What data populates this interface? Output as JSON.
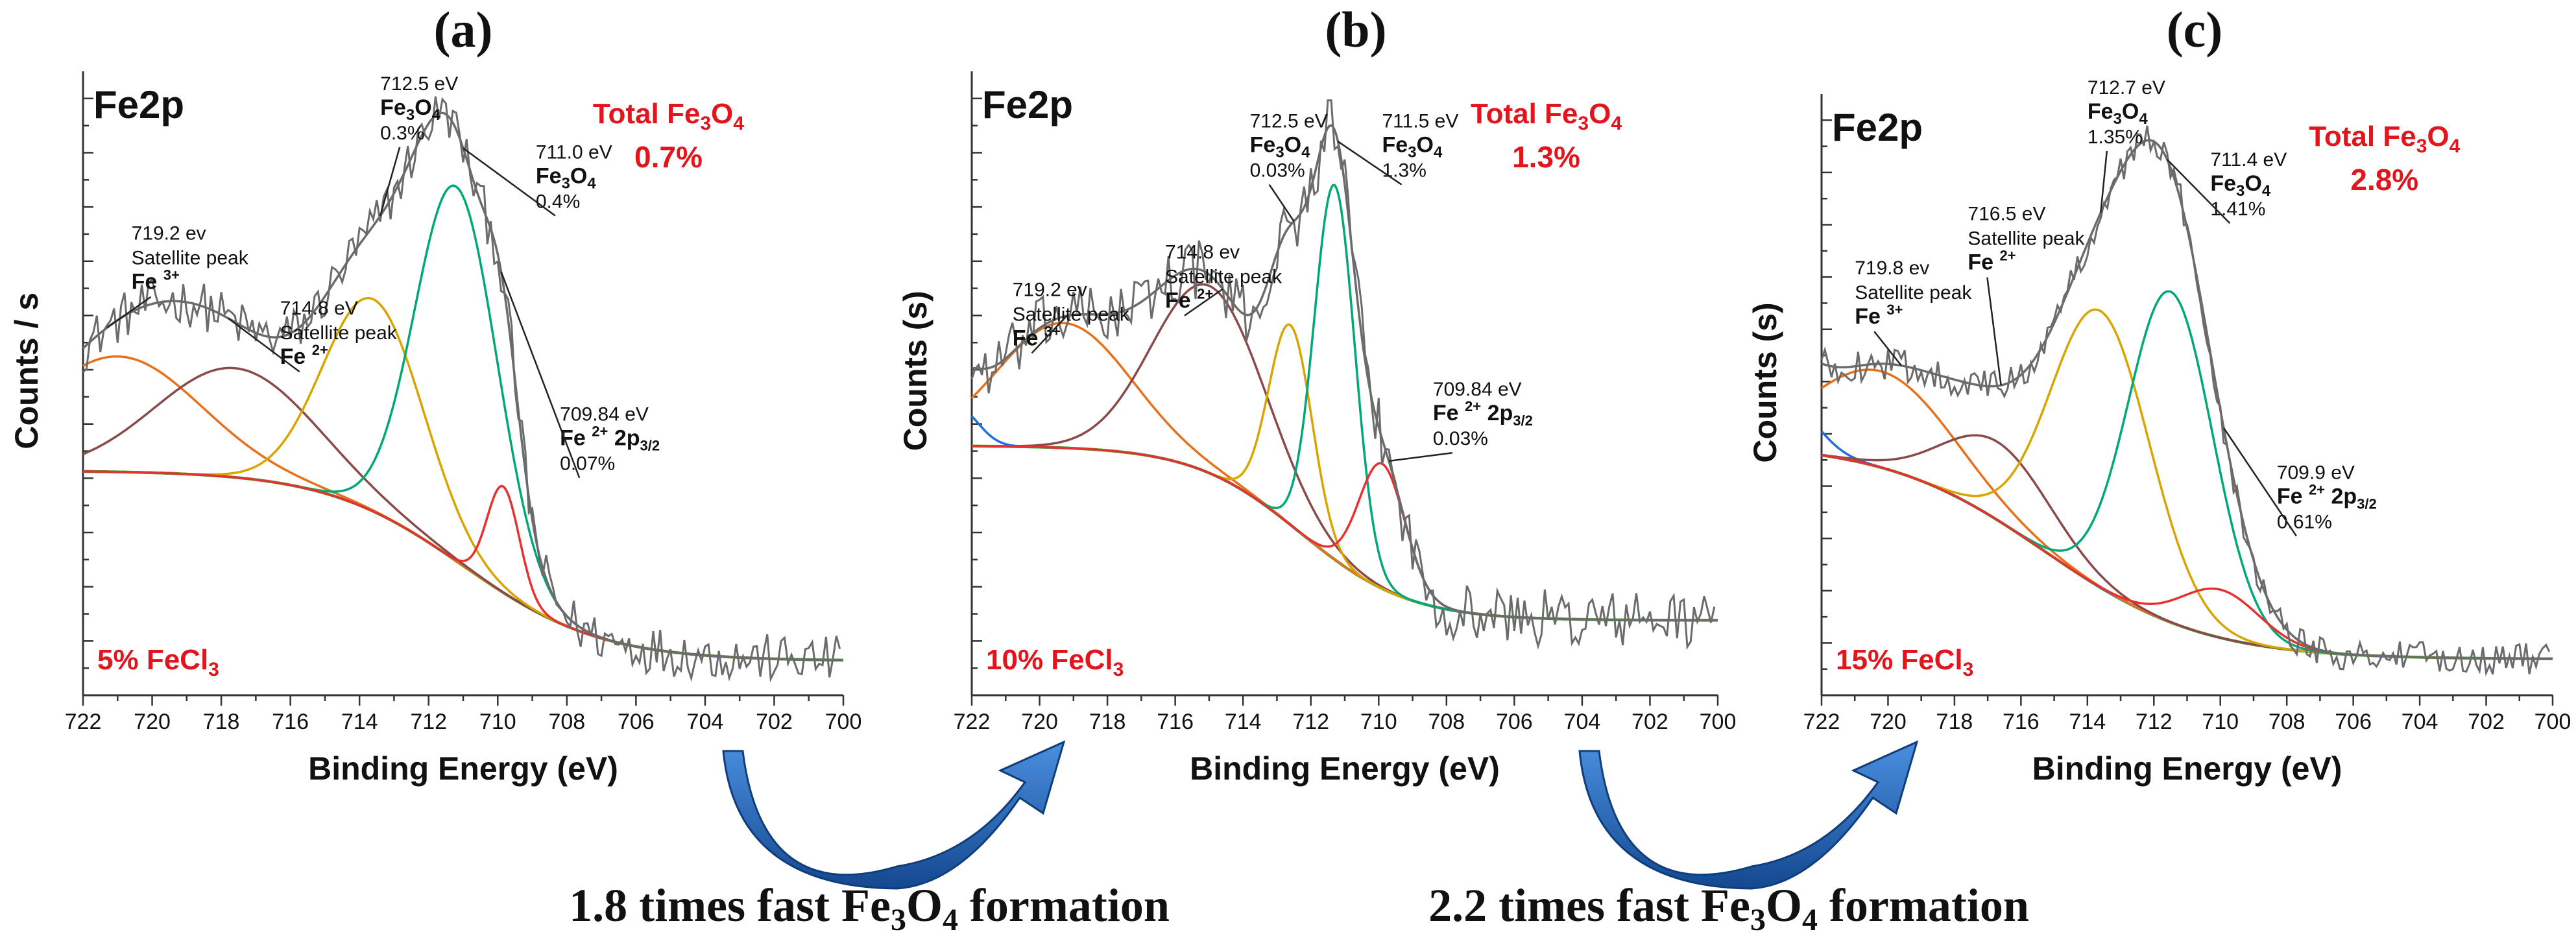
{
  "colors": {
    "raw": "#6b6b6b",
    "envelope": "#6b6b6b",
    "background": "#2db82d",
    "fe3_sat": "#e8701a",
    "fe2_sat": "#8b4a4a",
    "fe3o4_a": "#d9a400",
    "fe3o4_b": "#00a878",
    "fe2": "#e83030",
    "extra_blue": "#1f6fe0",
    "red_text": "#e3141b",
    "arrow": "#1f5fb0"
  },
  "comparisons": [
    {
      "lead": "1.8 times fast Fe",
      "sub3": "3",
      "mid": "O",
      "sub4": "4",
      "tail": " formation"
    },
    {
      "lead": "2.2 times fast Fe",
      "sub3": "3",
      "mid": "O",
      "sub4": "4",
      "tail": " formation"
    }
  ],
  "chart_data": [
    {
      "type": "line",
      "panel": "(a)",
      "element_label": "Fe2p",
      "xlabel": "Binding Energy (eV)",
      "ylabel": "Counts / s",
      "x_ticks": [
        "722",
        "720",
        "718",
        "716",
        "714",
        "712",
        "710",
        "708",
        "706",
        "704",
        "702",
        "700"
      ],
      "xlim": [
        722,
        700
      ],
      "sample": {
        "text": "5% FeCl",
        "sub": "3"
      },
      "total": {
        "title": "Total Fe",
        "title_sub": "3",
        "title_mid": "O",
        "title_sub2": "4",
        "value": "0.7%"
      },
      "baseline": {
        "left": 0.36,
        "right": 0.055,
        "mid": 711.0,
        "w": 2.0
      },
      "noise_amp": 0.018,
      "raw_xmax": 700.0,
      "components": [
        {
          "name": "fe3_sat",
          "center": 721.0,
          "height": 0.185,
          "fwhm": 5.6
        },
        {
          "name": "fe2_sat",
          "center": 717.6,
          "height": 0.175,
          "fwhm": 5.4
        },
        {
          "name": "fe3o4_a",
          "center": 713.6,
          "height": 0.34,
          "fwhm": 3.4
        },
        {
          "name": "fe3o4_b",
          "center": 711.2,
          "height": 0.6,
          "fwhm": 2.8
        },
        {
          "name": "fe2",
          "center": 709.84,
          "height": 0.17,
          "fwhm": 1.1
        }
      ],
      "annotations": [
        {
          "lines": [
            "719.2 ev",
            "Satellite peak",
            "Fe 3+"
          ],
          "bold_last": true,
          "label_x": 720.6,
          "label_y": 0.73,
          "target_x": 721.3
        },
        {
          "lines": [
            "714.8 eV",
            "Satellite peak",
            "Fe 2+"
          ],
          "bold_last": true,
          "label_x": 716.3,
          "label_y": 0.61,
          "target_x": 717.8
        },
        {
          "lines": [
            "712.5 eV",
            "Fe3O4",
            "0.3%"
          ],
          "bold_mid": true,
          "label_x": 713.4,
          "label_y": 0.97,
          "target_x": 713.4
        },
        {
          "lines": [
            "711.0 eV",
            "Fe3O4",
            "0.4%"
          ],
          "bold_mid": true,
          "label_x": 708.9,
          "label_y": 0.86,
          "target_x": 711.0
        },
        {
          "lines": [
            "709.84 eV",
            "Fe 2+ 2p3/2",
            "0.07%"
          ],
          "bold_mid": true,
          "label_x": 708.2,
          "label_y": 0.44,
          "target_x": 709.9
        }
      ]
    },
    {
      "type": "line",
      "panel": "(b)",
      "element_label": "Fe2p",
      "xlabel": "Binding Energy (eV)",
      "ylabel": "Counts (s)",
      "x_ticks": [
        "722",
        "720",
        "718",
        "716",
        "714",
        "712",
        "710",
        "708",
        "706",
        "704",
        "702",
        "700"
      ],
      "xlim": [
        722,
        700
      ],
      "sample": {
        "text": "10% FeCl",
        "sub": "3"
      },
      "total": {
        "title": "Total Fe",
        "title_sub": "3",
        "title_mid": "O",
        "title_sub2": "4",
        "value": "1.3%"
      },
      "baseline": {
        "left": 0.4,
        "right": 0.12,
        "mid": 712.3,
        "w": 1.6
      },
      "noise_amp": 0.022,
      "raw_xmax": 700.0,
      "components": [
        {
          "name": "extra_blue",
          "center": 722.4,
          "height": 0.06,
          "fwhm": 1.4
        },
        {
          "name": "fe3_sat",
          "center": 719.3,
          "height": 0.2,
          "fwhm": 4.6
        },
        {
          "name": "fe2_sat",
          "center": 715.0,
          "height": 0.3,
          "fwhm": 3.9
        },
        {
          "name": "fe3o4_a",
          "center": 712.6,
          "height": 0.32,
          "fwhm": 1.5
        },
        {
          "name": "fe3o4_b",
          "center": 711.3,
          "height": 0.6,
          "fwhm": 1.4
        },
        {
          "name": "fe2",
          "center": 709.9,
          "height": 0.2,
          "fwhm": 1.6
        }
      ],
      "annotations": [
        {
          "lines": [
            "719.2 ev",
            "Satellite peak",
            "Fe 3+"
          ],
          "bold_last": true,
          "label_x": 720.8,
          "label_y": 0.64,
          "target_x": 719.2
        },
        {
          "lines": [
            "714.8 ev",
            "Satellite peak",
            "Fe 2+"
          ],
          "bold_last": true,
          "label_x": 716.3,
          "label_y": 0.7,
          "target_x": 714.6
        },
        {
          "lines": [
            "712.5 eV",
            "Fe3O4",
            "0.03%"
          ],
          "bold_mid": true,
          "label_x": 713.8,
          "label_y": 0.91,
          "target_x": 712.5
        },
        {
          "lines": [
            "711.5 eV",
            "Fe3O4",
            "1.3%"
          ],
          "bold_mid": true,
          "label_x": 709.9,
          "label_y": 0.91,
          "target_x": 711.2
        },
        {
          "lines": [
            "709.84 eV",
            "Fe 2+ 2p3/2",
            "0.03%"
          ],
          "bold_mid": true,
          "label_x": 708.4,
          "label_y": 0.48,
          "target_x": 709.7
        }
      ]
    },
    {
      "type": "line",
      "panel": "(c)",
      "element_label": "Fe2p",
      "xlabel": "Binding Energy (eV)",
      "ylabel": "Counts (s)",
      "x_ticks": [
        "722",
        "720",
        "718",
        "716",
        "714",
        "712",
        "710",
        "708",
        "706",
        "704",
        "702",
        "700"
      ],
      "xlim": [
        722,
        700
      ],
      "sample": {
        "text": "15% FeCl",
        "sub": "3"
      },
      "total": {
        "title": "Total Fe",
        "title_sub": "3",
        "title_mid": "O",
        "title_sub2": "4",
        "value": "2.8%"
      },
      "baseline": {
        "left": 0.42,
        "right": 0.06,
        "mid": 715.3,
        "w": 2.4
      },
      "noise_amp": 0.012,
      "raw_xmax": 700.0,
      "components": [
        {
          "name": "extra_blue",
          "center": 723.0,
          "height": 0.08,
          "fwhm": 2.0
        },
        {
          "name": "fe3_sat",
          "center": 720.2,
          "height": 0.16,
          "fwhm": 5.0
        },
        {
          "name": "fe2_sat",
          "center": 716.7,
          "height": 0.13,
          "fwhm": 3.8
        },
        {
          "name": "fe3o4_a",
          "center": 713.6,
          "height": 0.46,
          "fwhm": 3.5
        },
        {
          "name": "fe3o4_b",
          "center": 711.5,
          "height": 0.55,
          "fwhm": 3.0
        },
        {
          "name": "fe2",
          "center": 710.0,
          "height": 0.08,
          "fwhm": 2.8
        }
      ],
      "annotations": [
        {
          "lines": [
            "719.8 ev",
            "Satellite peak",
            "Fe 3+"
          ],
          "bold_last": true,
          "label_x": 721.0,
          "label_y": 0.7,
          "target_x": 719.6
        },
        {
          "lines": [
            "716.5 eV",
            "Satellite peak",
            "Fe 2+"
          ],
          "bold_last": true,
          "label_x": 717.6,
          "label_y": 0.79,
          "target_x": 716.6
        },
        {
          "lines": [
            "712.7 eV",
            "Fe3O4",
            "1.35%"
          ],
          "bold_mid": true,
          "label_x": 714.0,
          "label_y": 1.0,
          "target_x": 713.6
        },
        {
          "lines": [
            "711.4 eV",
            "Fe3O4",
            "1.41%"
          ],
          "bold_mid": true,
          "label_x": 710.3,
          "label_y": 0.88,
          "target_x": 711.6
        },
        {
          "lines": [
            "709.9 eV",
            "Fe 2+ 2p3/2",
            "0.61%"
          ],
          "bold_mid": true,
          "label_x": 708.3,
          "label_y": 0.36,
          "target_x": 709.9
        }
      ]
    }
  ]
}
